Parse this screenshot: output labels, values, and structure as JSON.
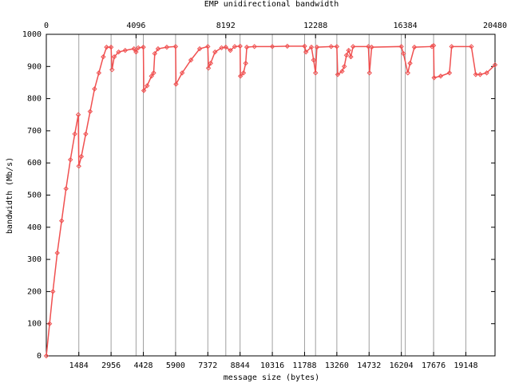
{
  "chart_data": {
    "type": "line",
    "title": "EMP unidirectional bandwidth",
    "x_label": "message size (bytes)",
    "y_label": "bandwidth (Mb/s)",
    "color": "#f05050",
    "grid": true,
    "xlim": [
      0,
      20480
    ],
    "ylim": [
      0,
      1000
    ],
    "xticks": [
      1484,
      2956,
      4428,
      5900,
      7372,
      8844,
      10316,
      11788,
      13260,
      14732,
      16204,
      17676,
      19148
    ],
    "x2ticks": [
      0,
      4096,
      8192,
      12288,
      16384,
      20480
    ],
    "yticks": [
      0,
      100,
      200,
      300,
      400,
      500,
      600,
      700,
      800,
      900,
      1000
    ],
    "x": [
      0,
      150,
      300,
      500,
      700,
      900,
      1100,
      1300,
      1460,
      1484,
      1600,
      1800,
      2000,
      2200,
      2400,
      2600,
      2750,
      2956,
      3000,
      3100,
      3300,
      3600,
      4000,
      4096,
      4200,
      4428,
      4450,
      4600,
      4800,
      4900,
      4950,
      5100,
      5500,
      5900,
      5920,
      6200,
      6600,
      7000,
      7372,
      7400,
      7500,
      7700,
      8000,
      8192,
      8400,
      8600,
      8844,
      8860,
      9000,
      9100,
      9150,
      9500,
      10316,
      11000,
      11788,
      11850,
      12100,
      12200,
      12288,
      12350,
      13000,
      13260,
      13300,
      13500,
      13600,
      13700,
      13800,
      13900,
      14000,
      14700,
      14750,
      14850,
      16204,
      16300,
      16500,
      16600,
      16800,
      17600,
      17676,
      17700,
      18000,
      18400,
      18500,
      19400,
      19600,
      19800,
      20100,
      20480
    ],
    "values": [
      0,
      100,
      200,
      320,
      420,
      520,
      610,
      690,
      750,
      590,
      620,
      690,
      760,
      830,
      880,
      930,
      960,
      960,
      890,
      930,
      945,
      950,
      955,
      945,
      958,
      960,
      825,
      840,
      870,
      880,
      940,
      955,
      960,
      962,
      845,
      880,
      920,
      955,
      962,
      895,
      910,
      945,
      958,
      960,
      950,
      962,
      963,
      870,
      880,
      910,
      960,
      962,
      962,
      963,
      963,
      945,
      960,
      920,
      880,
      960,
      962,
      962,
      875,
      885,
      900,
      935,
      950,
      930,
      962,
      962,
      880,
      960,
      962,
      940,
      880,
      910,
      960,
      962,
      965,
      865,
      870,
      880,
      962,
      962,
      875,
      875,
      880,
      905
    ]
  }
}
